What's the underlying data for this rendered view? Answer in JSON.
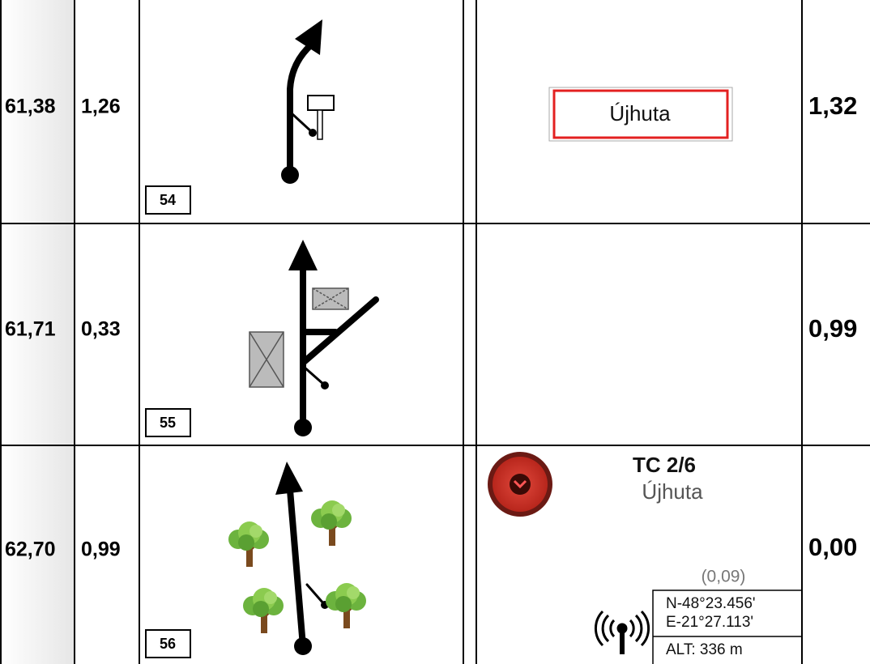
{
  "rows": [
    {
      "total": "61,38",
      "partial": "1,26",
      "number": "54",
      "note": "Újhuta",
      "next": "1,32"
    },
    {
      "total": "61,71",
      "partial": "0,33",
      "number": "55",
      "next": "0,99"
    },
    {
      "total": "62,70",
      "partial": "0,99",
      "number": "56",
      "next": "0,00",
      "control": {
        "title": "TC 2/6",
        "place": "Újhuta",
        "offset": "(0,09)",
        "lat": "N-48°23.456'",
        "lon": "E-21°27.113'",
        "alt": "ALT: 336 m"
      }
    }
  ]
}
